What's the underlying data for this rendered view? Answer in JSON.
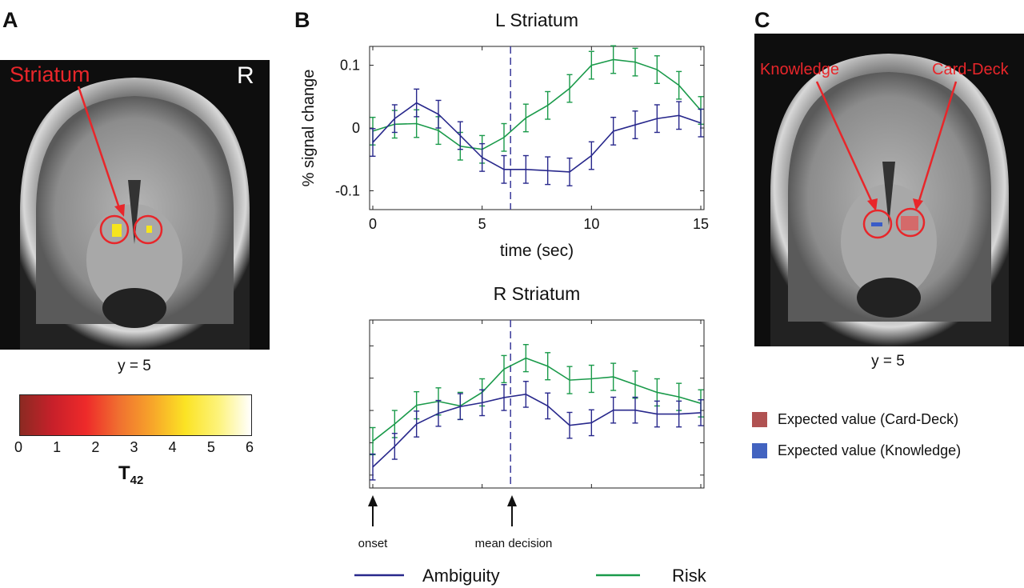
{
  "panels": {
    "A": {
      "letter": "A",
      "region_label": "Striatum",
      "hemisphere_label": "R",
      "slice_label": "y = 5",
      "colorbar": {
        "ticks": [
          "0",
          "1",
          "2",
          "3",
          "4",
          "5",
          "6"
        ],
        "label_main": "T",
        "label_sub": "42",
        "range": [
          0,
          6
        ],
        "colors": [
          "#8b2a22",
          "#c8202a",
          "#ee2a2a",
          "#f07030",
          "#f7a52a",
          "#fbe324",
          "#fdf37a",
          "#ffffff"
        ]
      }
    },
    "B": {
      "letter": "B"
    },
    "C": {
      "letter": "C",
      "label_knowledge": "Knowledge",
      "label_carddeck": "Card-Deck",
      "slice_label": "y = 5",
      "legend": [
        {
          "label": "Expected value (Card-Deck)",
          "color": "#b05252"
        },
        {
          "label": "Expected value (Knowledge)",
          "color": "#4263c0"
        }
      ]
    }
  },
  "annotations": {
    "onset": "onset",
    "mean_decision": "mean decision"
  },
  "legend": [
    {
      "label": "Ambiguity",
      "color": "#28288c"
    },
    {
      "label": "Risk",
      "color": "#1a9a4a"
    }
  ],
  "chart_data": [
    {
      "type": "line",
      "title": "L Striatum",
      "xlabel": "time (sec)",
      "ylabel": "% signal change",
      "xlim": [
        0,
        15
      ],
      "ylim": [
        -0.13,
        0.13
      ],
      "xticks": [
        "0",
        "5",
        "10",
        "15"
      ],
      "yticks": [
        "0.1",
        "0",
        "-0.1"
      ],
      "ytick_values": [
        0.1,
        0,
        -0.1
      ],
      "vline_x": 6.3,
      "x": [
        0,
        1,
        2,
        3,
        4,
        5,
        6,
        7,
        8,
        9,
        10,
        11,
        12,
        13,
        14,
        15
      ],
      "series": [
        {
          "name": "Ambiguity",
          "values": [
            -0.023,
            0.015,
            0.04,
            0.022,
            -0.012,
            -0.047,
            -0.066,
            -0.066,
            -0.068,
            -0.07,
            -0.044,
            -0.005,
            0.005,
            0.015,
            0.02,
            0.008
          ],
          "error": 0.022
        },
        {
          "name": "Risk",
          "values": [
            -0.005,
            0.006,
            0.007,
            -0.004,
            -0.029,
            -0.034,
            -0.015,
            0.016,
            0.036,
            0.063,
            0.1,
            0.109,
            0.105,
            0.093,
            0.068,
            0.028
          ],
          "error": 0.022
        }
      ]
    },
    {
      "type": "line",
      "title": "R Striatum",
      "xlim": [
        0,
        15
      ],
      "ylim": [
        -0.4,
        4.8
      ],
      "ytick_values": [
        0,
        1,
        2,
        3,
        4
      ],
      "vline_x": 6.3,
      "x": [
        0,
        1,
        2,
        3,
        4,
        5,
        6,
        7,
        8,
        9,
        10,
        11,
        12,
        13,
        14,
        15
      ],
      "series": [
        {
          "name": "Ambiguity",
          "values": [
            0.25,
            0.89,
            1.58,
            1.91,
            2.12,
            2.24,
            2.4,
            2.5,
            2.14,
            1.54,
            1.62,
            2.01,
            2.01,
            1.89,
            1.89,
            1.93
          ],
          "error": 0.4
        },
        {
          "name": "Risk",
          "values": [
            1.05,
            1.58,
            2.16,
            2.28,
            2.14,
            2.56,
            3.28,
            3.62,
            3.37,
            2.94,
            2.98,
            3.04,
            2.8,
            2.56,
            2.42,
            2.22
          ],
          "error": 0.42
        }
      ]
    }
  ]
}
